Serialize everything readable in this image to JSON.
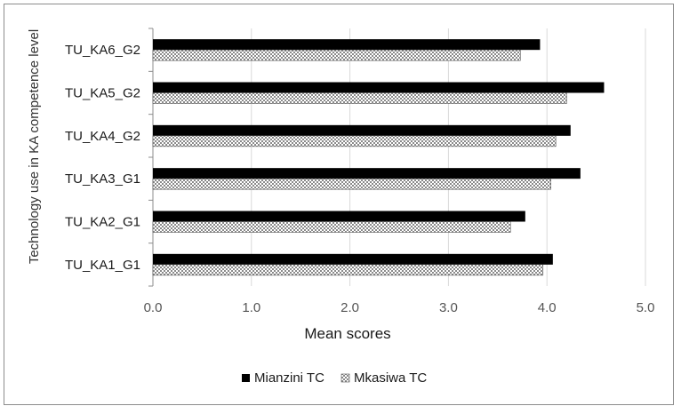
{
  "chart_data": {
    "type": "bar",
    "orientation": "horizontal",
    "categories": [
      "TU_KA6_G2",
      "TU_KA5_G2",
      "TU_KA4_G2",
      "TU_KA3_G1",
      "TU_KA2_G1",
      "TU_KA1_G1"
    ],
    "series": [
      {
        "name": "Mianzini TC",
        "values": [
          3.93,
          4.58,
          4.24,
          4.34,
          3.78,
          4.06
        ],
        "color": "#000000",
        "pattern": "solid"
      },
      {
        "name": "Mkasiwa TC",
        "values": [
          3.73,
          4.2,
          4.09,
          4.04,
          3.63,
          3.96
        ],
        "color": "#9a9a9a",
        "pattern": "checker"
      }
    ],
    "xlabel": "Mean scores",
    "ylabel": "Technology use in KA competence level",
    "xlim": [
      0.0,
      5.0
    ],
    "xticks": [
      "0.0",
      "1.0",
      "2.0",
      "3.0",
      "4.0",
      "5.0"
    ],
    "grid": "vertical",
    "legend_position": "bottom"
  }
}
